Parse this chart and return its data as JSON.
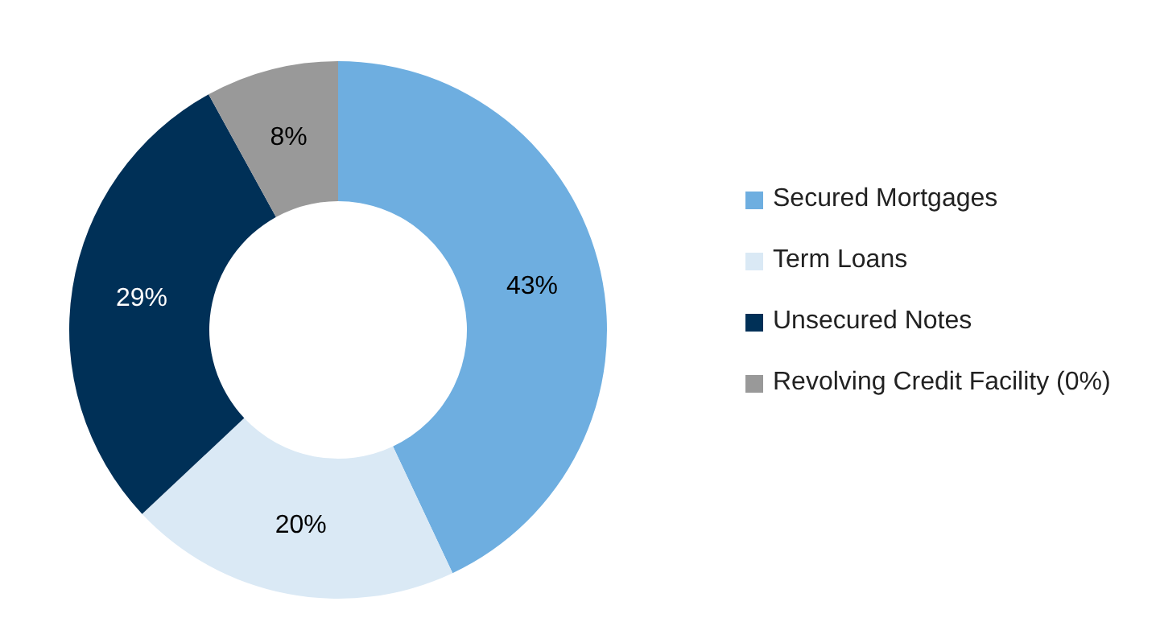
{
  "chart_data": {
    "type": "donut",
    "categories": [
      "Secured Mortgages",
      "Term Loans",
      "Unsecured Notes",
      "Revolving Credit Facility (0%)"
    ],
    "values": [
      43,
      20,
      29,
      8
    ],
    "value_labels": [
      "43%",
      "20%",
      "29%",
      "8%"
    ],
    "colors": [
      "#6eaee0",
      "#dae9f5",
      "#003057",
      "#999999"
    ],
    "legend": "right"
  }
}
